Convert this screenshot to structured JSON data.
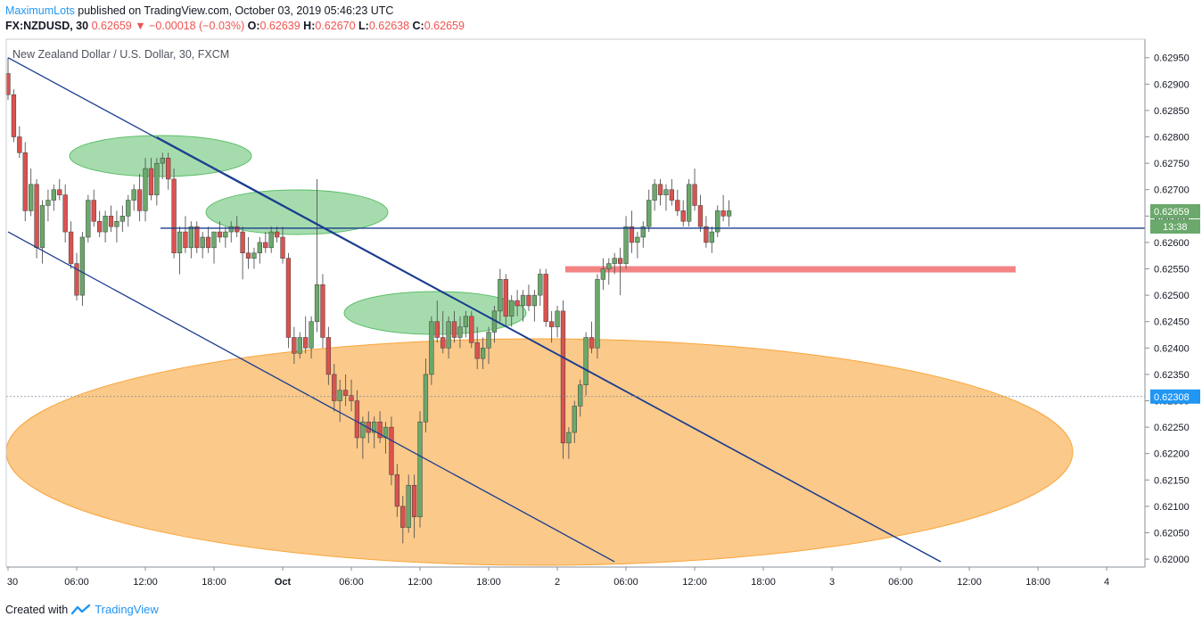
{
  "header": {
    "author": "MaximumLots",
    "published_text": "published on TradingView.com, October 03, 2019 05:46:23 UTC",
    "symbol": "FX:NZDUSD, 30",
    "last": "0.62659",
    "change": "−0.00018 (−0.03%)",
    "o_label": "O:",
    "o": "0.62639",
    "h_label": "H:",
    "h": "0.62670",
    "l_label": "L:",
    "l": "0.62638",
    "c_label": "C:",
    "c": "0.62659"
  },
  "footer": {
    "created_with": "Created with",
    "brand": "TradingView"
  },
  "colors": {
    "up": "#6aa86b",
    "down": "#d9534f",
    "trend": "#1a3d8f",
    "zone": "#f9a53a",
    "resistance": "#f26d6d",
    "support": "#5cbf6a"
  },
  "chart_data": {
    "type": "candlestick",
    "title": "New Zealand Dollar / U.S. Dollar, 30, FXCM",
    "ylim": [
      0.61985,
      0.62985
    ],
    "y_ticks": [
      "0.62950",
      "0.62900",
      "0.62850",
      "0.62800",
      "0.62750",
      "0.62700",
      "0.62650",
      "0.62600",
      "0.62550",
      "0.62500",
      "0.62450",
      "0.62400",
      "0.62350",
      "0.62300",
      "0.62250",
      "0.62200",
      "0.62150",
      "0.62100",
      "0.62050",
      "0.62000"
    ],
    "x_ticks": [
      {
        "label": "30",
        "bar": 0
      },
      {
        "label": "06:00",
        "bar": 12
      },
      {
        "label": "12:00",
        "bar": 24
      },
      {
        "label": "18:00",
        "bar": 36
      },
      {
        "label": "Oct",
        "bar": 48
      },
      {
        "label": "06:00",
        "bar": 60
      },
      {
        "label": "12:00",
        "bar": 72
      },
      {
        "label": "18:00",
        "bar": 84
      },
      {
        "label": "2",
        "bar": 96
      },
      {
        "label": "06:00",
        "bar": 108
      },
      {
        "label": "12:00",
        "bar": 120
      },
      {
        "label": "18:00",
        "bar": 132
      },
      {
        "label": "3",
        "bar": 144
      },
      {
        "label": "06:00",
        "bar": 156
      },
      {
        "label": "12:00",
        "bar": 168
      },
      {
        "label": "18:00",
        "bar": 180
      },
      {
        "label": "4",
        "bar": 192
      }
    ],
    "bar_count_visible": 199,
    "ohlc": [
      [
        0.6292,
        0.6295,
        0.6287,
        0.6288
      ],
      [
        0.6288,
        0.6289,
        0.6279,
        0.628
      ],
      [
        0.628,
        0.6282,
        0.6276,
        0.6277
      ],
      [
        0.6277,
        0.6279,
        0.6264,
        0.6266
      ],
      [
        0.6266,
        0.6274,
        0.6265,
        0.6271
      ],
      [
        0.6271,
        0.6272,
        0.6257,
        0.6259
      ],
      [
        0.6259,
        0.6268,
        0.6256,
        0.6267
      ],
      [
        0.6267,
        0.627,
        0.6264,
        0.6268
      ],
      [
        0.6268,
        0.6271,
        0.6266,
        0.627
      ],
      [
        0.627,
        0.6272,
        0.6268,
        0.6269
      ],
      [
        0.6269,
        0.6271,
        0.626,
        0.6262
      ],
      [
        0.6262,
        0.6264,
        0.6255,
        0.6256
      ],
      [
        0.6256,
        0.6258,
        0.6249,
        0.625
      ],
      [
        0.625,
        0.6262,
        0.6248,
        0.6261
      ],
      [
        0.6261,
        0.6269,
        0.626,
        0.6268
      ],
      [
        0.6268,
        0.627,
        0.6263,
        0.6264
      ],
      [
        0.6264,
        0.6266,
        0.6261,
        0.6262
      ],
      [
        0.6262,
        0.6266,
        0.626,
        0.6265
      ],
      [
        0.6265,
        0.6267,
        0.6262,
        0.6263
      ],
      [
        0.6263,
        0.6266,
        0.626,
        0.6264
      ],
      [
        0.6264,
        0.6267,
        0.6262,
        0.6265
      ],
      [
        0.6265,
        0.6269,
        0.6263,
        0.6268
      ],
      [
        0.6268,
        0.6271,
        0.6266,
        0.627
      ],
      [
        0.627,
        0.6273,
        0.6264,
        0.6266
      ],
      [
        0.6266,
        0.6276,
        0.6264,
        0.6274
      ],
      [
        0.6274,
        0.6276,
        0.6268,
        0.6269
      ],
      [
        0.6269,
        0.6276,
        0.6267,
        0.6275
      ],
      [
        0.6275,
        0.6277,
        0.6272,
        0.6276
      ],
      [
        0.6276,
        0.6277,
        0.627,
        0.6272
      ],
      [
        0.6272,
        0.6274,
        0.6257,
        0.6258
      ],
      [
        0.6258,
        0.6263,
        0.6254,
        0.6262
      ],
      [
        0.6262,
        0.6265,
        0.6258,
        0.6259
      ],
      [
        0.6259,
        0.6264,
        0.6257,
        0.6263
      ],
      [
        0.6263,
        0.6264,
        0.6258,
        0.6259
      ],
      [
        0.6259,
        0.6262,
        0.6257,
        0.6261
      ],
      [
        0.6261,
        0.6263,
        0.6258,
        0.6259
      ],
      [
        0.6259,
        0.6262,
        0.6256,
        0.6262
      ],
      [
        0.6262,
        0.6264,
        0.626,
        0.6261
      ],
      [
        0.6261,
        0.6263,
        0.6259,
        0.6262
      ],
      [
        0.6262,
        0.6264,
        0.626,
        0.6263
      ],
      [
        0.6263,
        0.6265,
        0.6261,
        0.6262
      ],
      [
        0.6262,
        0.6263,
        0.6253,
        0.6258
      ],
      [
        0.6258,
        0.6261,
        0.6255,
        0.6257
      ],
      [
        0.6257,
        0.6259,
        0.6255,
        0.6258
      ],
      [
        0.6258,
        0.6261,
        0.6256,
        0.626
      ],
      [
        0.626,
        0.6262,
        0.6258,
        0.6259
      ],
      [
        0.6259,
        0.6263,
        0.6258,
        0.6262
      ],
      [
        0.6262,
        0.6263,
        0.626,
        0.6261
      ],
      [
        0.6261,
        0.6263,
        0.6256,
        0.6257
      ],
      [
        0.6257,
        0.6258,
        0.624,
        0.6242
      ],
      [
        0.6242,
        0.6244,
        0.6237,
        0.6239
      ],
      [
        0.6239,
        0.6243,
        0.6238,
        0.6242
      ],
      [
        0.6242,
        0.6246,
        0.6239,
        0.624
      ],
      [
        0.624,
        0.6246,
        0.6238,
        0.6245
      ],
      [
        0.6245,
        0.6272,
        0.6243,
        0.6252
      ],
      [
        0.6252,
        0.6254,
        0.624,
        0.6242
      ],
      [
        0.6242,
        0.6244,
        0.6233,
        0.6235
      ],
      [
        0.6235,
        0.6237,
        0.6228,
        0.623
      ],
      [
        0.623,
        0.6234,
        0.6226,
        0.6232
      ],
      [
        0.6232,
        0.6235,
        0.6229,
        0.6231
      ],
      [
        0.6231,
        0.6234,
        0.6228,
        0.623
      ],
      [
        0.623,
        0.6232,
        0.6221,
        0.6223
      ],
      [
        0.6223,
        0.6227,
        0.6219,
        0.6226
      ],
      [
        0.6226,
        0.6228,
        0.6222,
        0.6224
      ],
      [
        0.6224,
        0.6227,
        0.6221,
        0.6226
      ],
      [
        0.6226,
        0.6228,
        0.6222,
        0.6223
      ],
      [
        0.6223,
        0.6226,
        0.622,
        0.6225
      ],
      [
        0.6225,
        0.6227,
        0.6214,
        0.6216
      ],
      [
        0.6216,
        0.6218,
        0.6208,
        0.621
      ],
      [
        0.621,
        0.6212,
        0.6203,
        0.6206
      ],
      [
        0.6206,
        0.6216,
        0.6205,
        0.6214
      ],
      [
        0.6214,
        0.6216,
        0.6204,
        0.6208
      ],
      [
        0.6208,
        0.6228,
        0.6206,
        0.6226
      ],
      [
        0.6226,
        0.6238,
        0.6224,
        0.6235
      ],
      [
        0.6235,
        0.6246,
        0.6233,
        0.6245
      ],
      [
        0.6245,
        0.6249,
        0.6241,
        0.6242
      ],
      [
        0.6242,
        0.6247,
        0.6239,
        0.624
      ],
      [
        0.624,
        0.6246,
        0.6238,
        0.6245
      ],
      [
        0.6245,
        0.6247,
        0.6241,
        0.6242
      ],
      [
        0.6242,
        0.6246,
        0.624,
        0.6244
      ],
      [
        0.6244,
        0.6247,
        0.6242,
        0.6246
      ],
      [
        0.6246,
        0.6247,
        0.624,
        0.6241
      ],
      [
        0.6241,
        0.6244,
        0.6236,
        0.6238
      ],
      [
        0.6238,
        0.6242,
        0.6236,
        0.624
      ],
      [
        0.624,
        0.6244,
        0.6237,
        0.6243
      ],
      [
        0.6243,
        0.6248,
        0.6241,
        0.6247
      ],
      [
        0.6247,
        0.6255,
        0.6245,
        0.6253
      ],
      [
        0.6253,
        0.6254,
        0.6244,
        0.6246
      ],
      [
        0.6246,
        0.625,
        0.6244,
        0.6249
      ],
      [
        0.6249,
        0.6251,
        0.6246,
        0.6248
      ],
      [
        0.6248,
        0.6251,
        0.6245,
        0.625
      ],
      [
        0.625,
        0.6252,
        0.6247,
        0.6248
      ],
      [
        0.6248,
        0.6251,
        0.6245,
        0.625
      ],
      [
        0.625,
        0.6255,
        0.6248,
        0.6254
      ],
      [
        0.6254,
        0.6255,
        0.6244,
        0.6245
      ],
      [
        0.6245,
        0.6247,
        0.6241,
        0.6244
      ],
      [
        0.6244,
        0.6248,
        0.6242,
        0.6247
      ],
      [
        0.6247,
        0.6249,
        0.6219,
        0.6222
      ],
      [
        0.6222,
        0.6225,
        0.6219,
        0.6224
      ],
      [
        0.6224,
        0.623,
        0.6222,
        0.6229
      ],
      [
        0.6229,
        0.6234,
        0.6227,
        0.6233
      ],
      [
        0.6233,
        0.6243,
        0.6231,
        0.6242
      ],
      [
        0.6242,
        0.6245,
        0.6239,
        0.624
      ],
      [
        0.624,
        0.6254,
        0.6238,
        0.6253
      ],
      [
        0.6253,
        0.6257,
        0.6251,
        0.6255
      ],
      [
        0.6255,
        0.6257,
        0.6252,
        0.6256
      ],
      [
        0.6256,
        0.6258,
        0.6254,
        0.6257
      ],
      [
        0.6257,
        0.6259,
        0.625,
        0.6256
      ],
      [
        0.6256,
        0.6265,
        0.6255,
        0.6263
      ],
      [
        0.6263,
        0.6266,
        0.6258,
        0.626
      ],
      [
        0.626,
        0.6262,
        0.6257,
        0.6261
      ],
      [
        0.6261,
        0.6264,
        0.6259,
        0.6263
      ],
      [
        0.6263,
        0.627,
        0.6262,
        0.6268
      ],
      [
        0.6268,
        0.6272,
        0.6266,
        0.6271
      ],
      [
        0.6271,
        0.6272,
        0.6267,
        0.6269
      ],
      [
        0.6269,
        0.6271,
        0.6266,
        0.627
      ],
      [
        0.627,
        0.6272,
        0.6267,
        0.6268
      ],
      [
        0.6268,
        0.627,
        0.6265,
        0.6266
      ],
      [
        0.6266,
        0.6268,
        0.6263,
        0.6264
      ],
      [
        0.6264,
        0.6272,
        0.6263,
        0.6271
      ],
      [
        0.6271,
        0.6274,
        0.6266,
        0.6267
      ],
      [
        0.6267,
        0.6269,
        0.6262,
        0.6263
      ],
      [
        0.6263,
        0.6265,
        0.6259,
        0.626
      ],
      [
        0.626,
        0.6263,
        0.6258,
        0.6262
      ],
      [
        0.6262,
        0.6267,
        0.6261,
        0.6266
      ],
      [
        0.6266,
        0.6269,
        0.6264,
        0.6265
      ],
      [
        0.6265,
        0.6268,
        0.6263,
        0.6266
      ]
    ],
    "annotations": {
      "trend_upper": {
        "from": [
          0,
          0.6295
        ],
        "to": [
          163,
          0.61995
        ]
      },
      "trend_lower": {
        "from": [
          0,
          0.6262
        ],
        "to": [
          106,
          0.61995
        ]
      },
      "trend_mid": {
        "from": [
          26,
          0.628
        ],
        "to": [
          163,
          0.61995
        ]
      },
      "horizontal_level": 0.62627,
      "dashed_level": "0.62308",
      "resistance_zone": [
        0.62555,
        0.62545
      ],
      "price_label": "0.62659",
      "time_label": "13:38"
    }
  }
}
